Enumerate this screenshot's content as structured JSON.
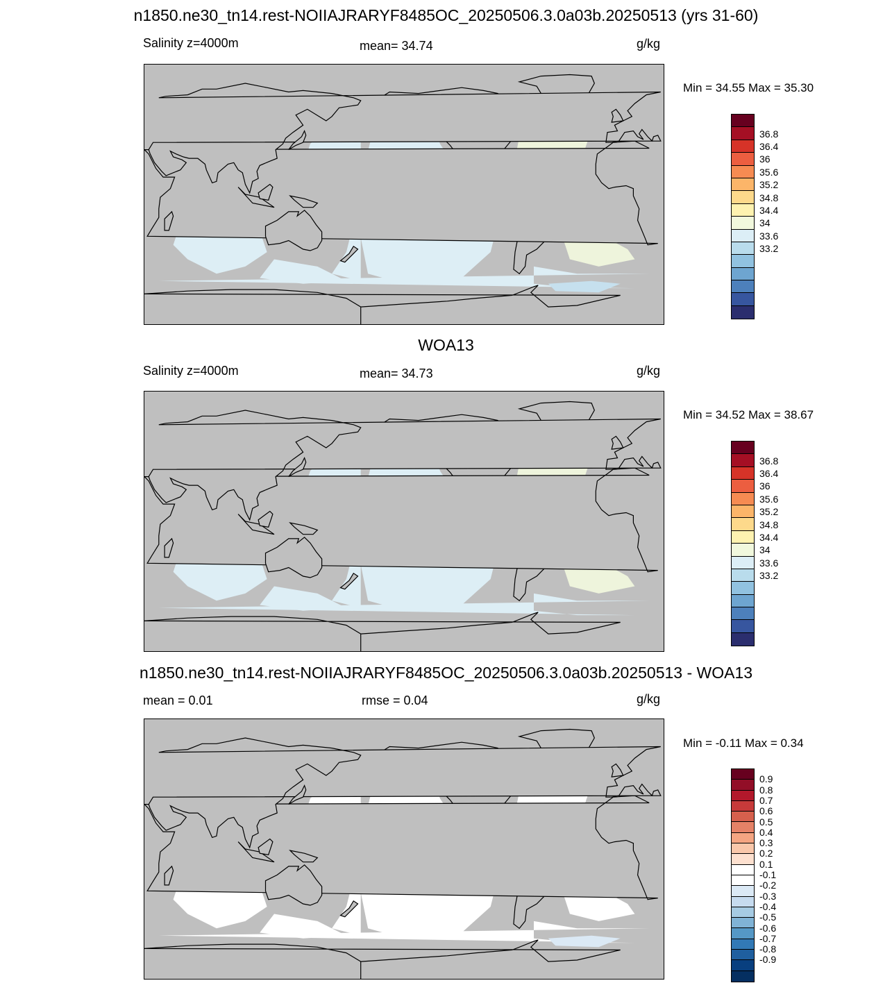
{
  "colors": {
    "land": "#bfbfbf",
    "salinity_ocean": "#ddeef5",
    "salinity_atlantic": "#eef4dc",
    "salinity_high": "#fdf6b7",
    "salinity_low": "#c6e0ee",
    "diff_ocean": "#ffffff",
    "diff_pos": "#fce0d0",
    "diff_neg": "#dbe9f5"
  },
  "panels": [
    {
      "title": "n1850.ne30_tn14.rest-NOIIAJRARYF8485OC_20250506.3.0a03b.20250513 (yrs 31-60)",
      "left_label": "Salinity z=4000m",
      "center_label": "mean=  34.74",
      "units": "g/kg",
      "minmax": "Min =  34.55 Max =  35.30",
      "colorbar_ticks": [
        "36.8",
        "36.4",
        "36",
        "35.6",
        "35.2",
        "34.8",
        "34.4",
        "34",
        "33.6",
        "33.2"
      ]
    },
    {
      "title": "WOA13",
      "left_label": "Salinity z=4000m",
      "center_label": "mean=  34.73",
      "units": "g/kg",
      "minmax": "Min =  34.52 Max =  38.67",
      "colorbar_ticks": [
        "36.8",
        "36.4",
        "36",
        "35.6",
        "35.2",
        "34.8",
        "34.4",
        "34",
        "33.6",
        "33.2"
      ]
    },
    {
      "title": "n1850.ne30_tn14.rest-NOIIAJRARYF8485OC_20250506.3.0a03b.20250513 - WOA13",
      "left_label": "mean =   0.01",
      "center_label": "rmse =   0.04",
      "units": "g/kg",
      "minmax": "Min =  -0.11 Max =   0.34",
      "colorbar_ticks": [
        "0.9",
        "0.8",
        "0.7",
        "0.6",
        "0.5",
        "0.4",
        "0.3",
        "0.2",
        "0.1",
        "-0.1",
        "-0.2",
        "-0.3",
        "-0.4",
        "-0.5",
        "-0.6",
        "-0.7",
        "-0.8",
        "-0.9"
      ]
    }
  ],
  "colorbar_salinity": [
    "#67001f",
    "#a50f24",
    "#d63328",
    "#ec5e40",
    "#f68b52",
    "#fcb569",
    "#fdd98b",
    "#fef2b0",
    "#f1f8dd",
    "#dceef6",
    "#b9dcec",
    "#91c2e0",
    "#6ea5d0",
    "#4d80bb",
    "#37569f",
    "#2b2e6e"
  ],
  "colorbar_diff": [
    "#67001f",
    "#920e27",
    "#b2182b",
    "#c73a3a",
    "#d6604d",
    "#e58267",
    "#f4a582",
    "#f9c7aa",
    "#fde0cf",
    "#ffffff",
    "#ffffff",
    "#dbe9f5",
    "#c6dbef",
    "#a6cbe3",
    "#80b3d6",
    "#5598c6",
    "#3279b6",
    "#1f5f9f",
    "#083f7f",
    "#052f61"
  ]
}
